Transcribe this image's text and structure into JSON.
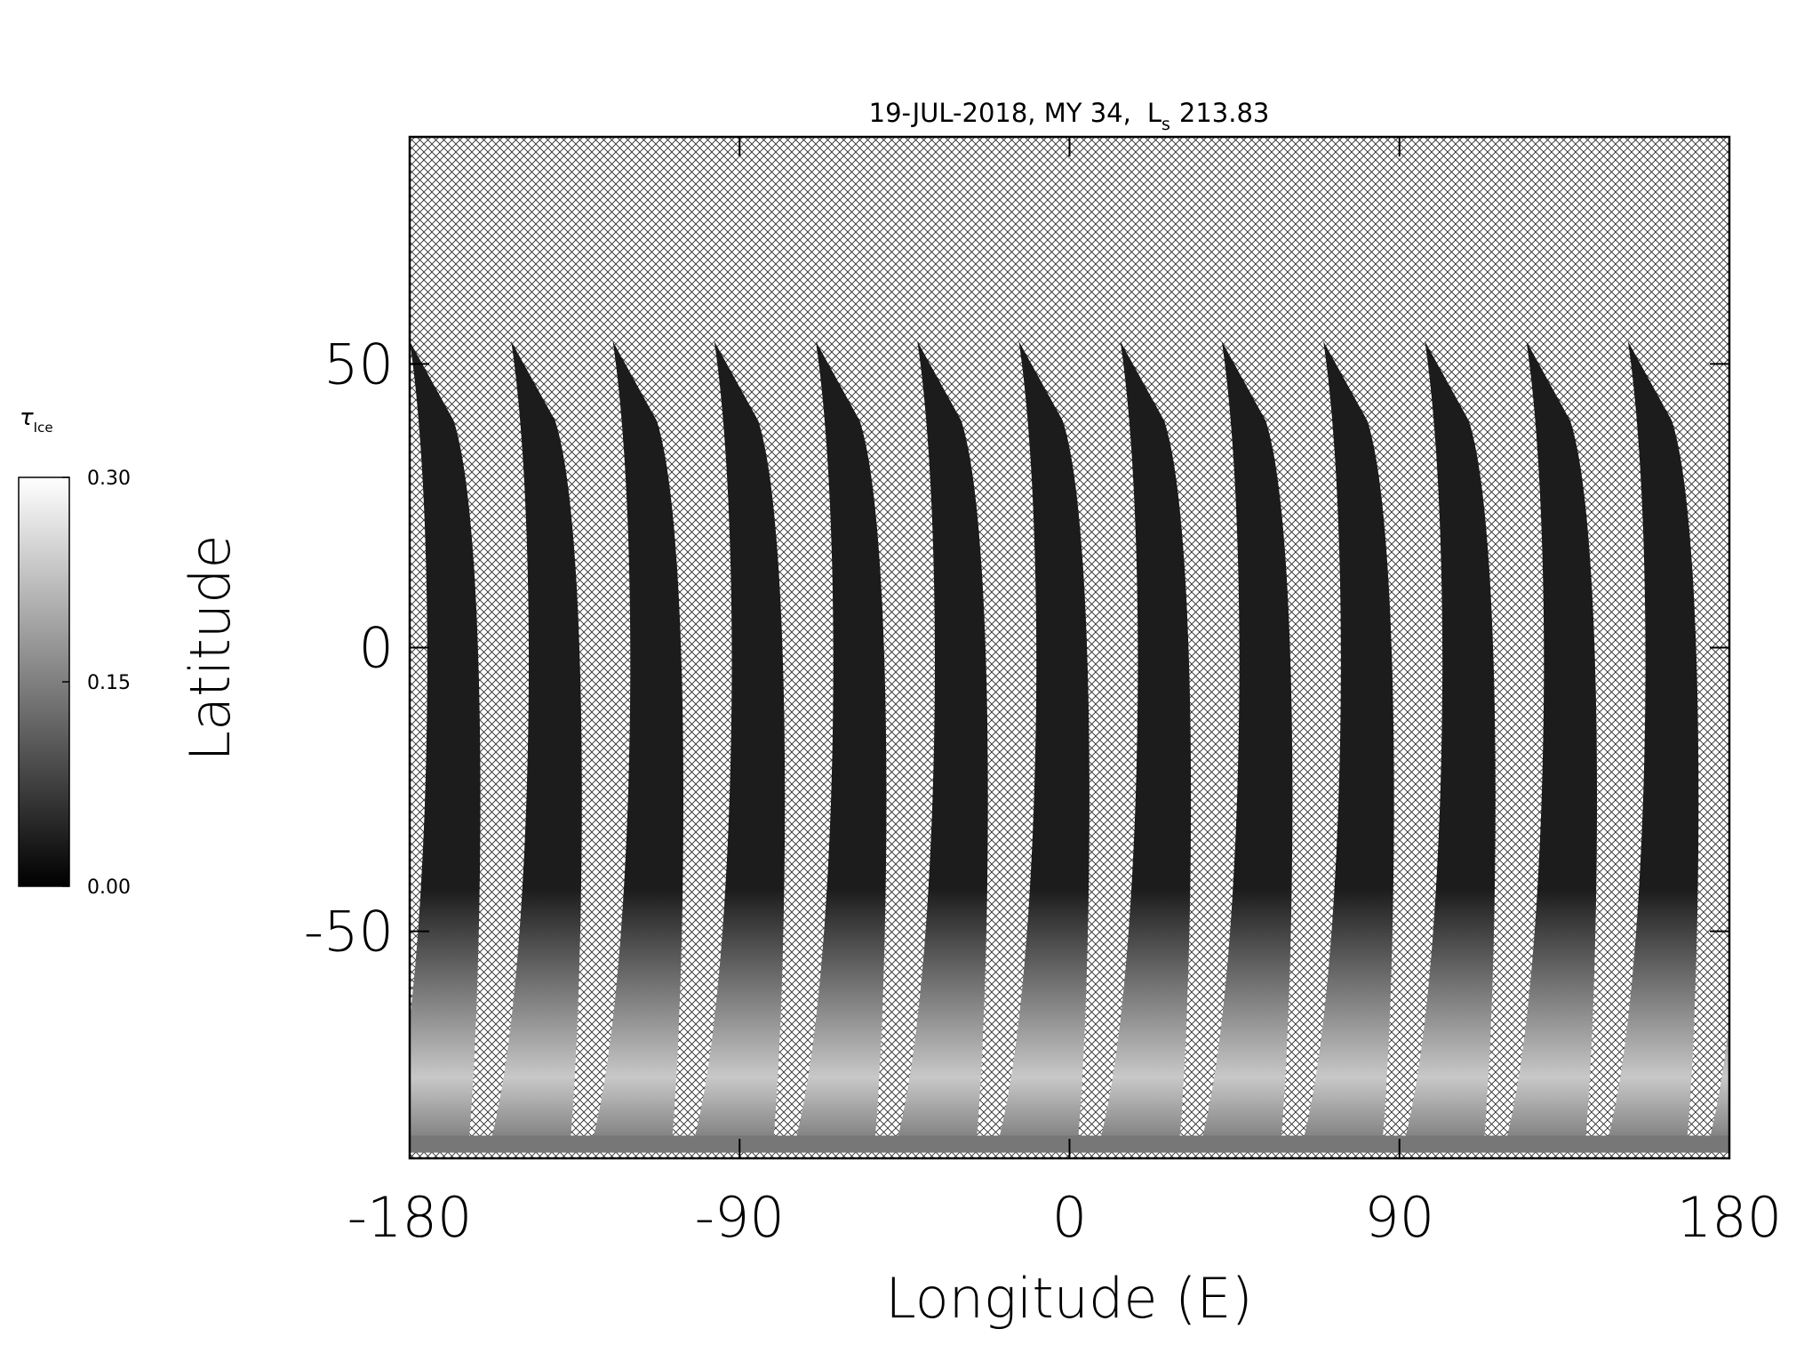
{
  "chart_data": {
    "type": "map",
    "title": "19-JUL-2018, MY 34,",
    "title_ls": {
      "label": "L",
      "subscript": "s",
      "value": 213.83
    },
    "xlabel": "Longitude (E)",
    "ylabel": "Latitude",
    "xlim": [
      -180,
      180
    ],
    "ylim": [
      -90,
      90
    ],
    "xticks": [
      -180,
      -90,
      0,
      90,
      180
    ],
    "yticks": [
      -50,
      0,
      50
    ],
    "colorbar": {
      "label": "τ",
      "label_subscript": "Ice",
      "lim": [
        0,
        0.3
      ],
      "ticks": [
        {
          "value": 0,
          "label": "0.00"
        },
        {
          "value": 0.15,
          "label": "0.15"
        },
        {
          "value": 0.3,
          "label": "0.30"
        }
      ],
      "colors": [
        "#000000",
        "#ffffff"
      ]
    }
  }
}
